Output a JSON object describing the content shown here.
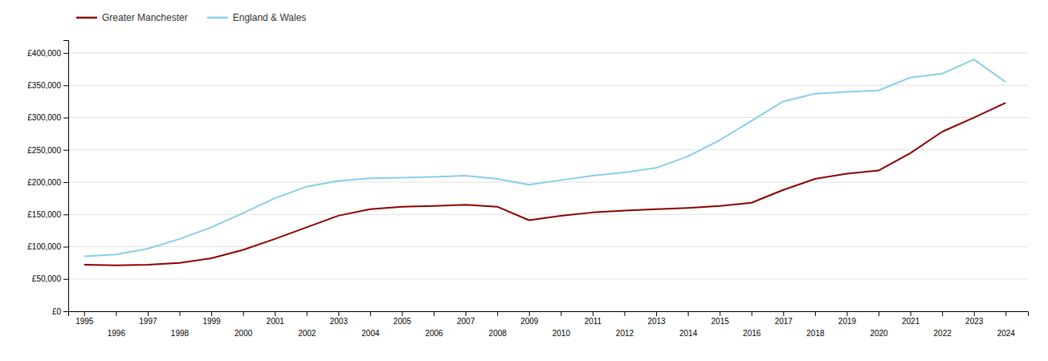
{
  "chart_data": {
    "type": "line",
    "x": [
      1995,
      1996,
      1997,
      1998,
      1999,
      2000,
      2001,
      2002,
      2003,
      2004,
      2005,
      2006,
      2007,
      2008,
      2009,
      2010,
      2011,
      2012,
      2013,
      2014,
      2015,
      2016,
      2017,
      2018,
      2019,
      2020,
      2021,
      2022,
      2023,
      2024
    ],
    "series": [
      {
        "name": "Greater Manchester",
        "color": "#8B0000",
        "values": [
          72000,
          71000,
          72000,
          75000,
          82000,
          95000,
          112000,
          130000,
          148000,
          158000,
          162000,
          163000,
          165000,
          162000,
          141000,
          148000,
          153000,
          156000,
          158000,
          160000,
          163000,
          168000,
          188000,
          205000,
          213000,
          218000,
          245000,
          278000,
          300000,
          323000
        ]
      },
      {
        "name": "England & Wales",
        "color": "#87CEEB",
        "values": [
          85000,
          88000,
          97000,
          112000,
          130000,
          152000,
          175000,
          193000,
          202000,
          206000,
          207000,
          208000,
          210000,
          205000,
          196000,
          203000,
          210000,
          215000,
          222000,
          240000,
          265000,
          295000,
          325000,
          337000,
          340000,
          342000,
          362000,
          368000,
          390000,
          355000
        ]
      }
    ],
    "xlim": [
      1994.5,
      2024.7
    ],
    "xticks": [
      1995,
      1996,
      1997,
      1998,
      1999,
      2000,
      2001,
      2002,
      2003,
      2004,
      2005,
      2006,
      2007,
      2008,
      2009,
      2010,
      2011,
      2012,
      2013,
      2014,
      2015,
      2016,
      2017,
      2018,
      2019,
      2020,
      2021,
      2022,
      2023,
      2024
    ],
    "ylim": [
      0,
      420000
    ],
    "yticks": [
      {
        "value": 0,
        "label": "£0"
      },
      {
        "value": 50000,
        "label": "£50,000"
      },
      {
        "value": 100000,
        "label": "£100,000"
      },
      {
        "value": 150000,
        "label": "£150,000"
      },
      {
        "value": 200000,
        "label": "£200,000"
      },
      {
        "value": 250000,
        "label": "£250,000"
      },
      {
        "value": 300000,
        "label": "£300,000"
      },
      {
        "value": 350000,
        "label": "£350,000"
      },
      {
        "value": 400000,
        "label": "£400,000"
      }
    ],
    "grid": true,
    "legend": "upper left"
  }
}
